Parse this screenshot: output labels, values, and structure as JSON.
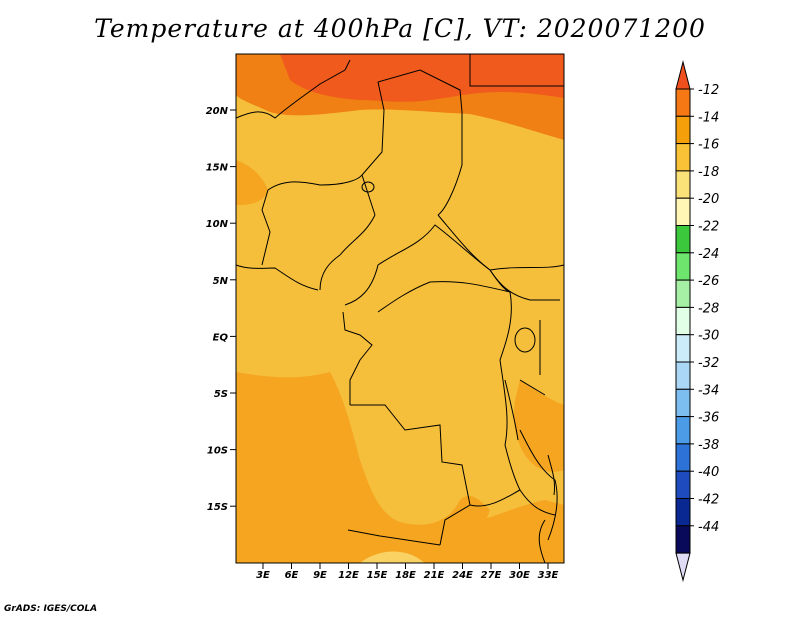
{
  "title": "Temperature at 400hPa [C], VT: 2020071200",
  "credit": "GrADS: IGES/COLA",
  "map": {
    "lat_labels": [
      "20N",
      "15N",
      "10N",
      "5N",
      "EQ",
      "5S",
      "10S",
      "15S"
    ],
    "lon_labels": [
      "3E",
      "6E",
      "9E",
      "12E",
      "15E",
      "18E",
      "21E",
      "24E",
      "27E",
      "30E",
      "33E"
    ]
  },
  "colorbar": {
    "levels": [
      "-12",
      "-14",
      "-16",
      "-18",
      "-20",
      "-22",
      "-24",
      "-26",
      "-28",
      "-30",
      "-32",
      "-34",
      "-36",
      "-38",
      "-40",
      "-42",
      "-44"
    ],
    "colors": [
      "#f0501e",
      "#f57814",
      "#f5a00a",
      "#fac337",
      "#fae178",
      "#fff5b4",
      "#3cc83c",
      "#6ee66e",
      "#a5f0a5",
      "#e1ffe6",
      "#cdecfa",
      "#aad7f5",
      "#7dbef0",
      "#4b9be6",
      "#2d73d7",
      "#1e4bbe",
      "#0a2891",
      "#0a0a5a",
      "#e1dcf5"
    ]
  }
}
